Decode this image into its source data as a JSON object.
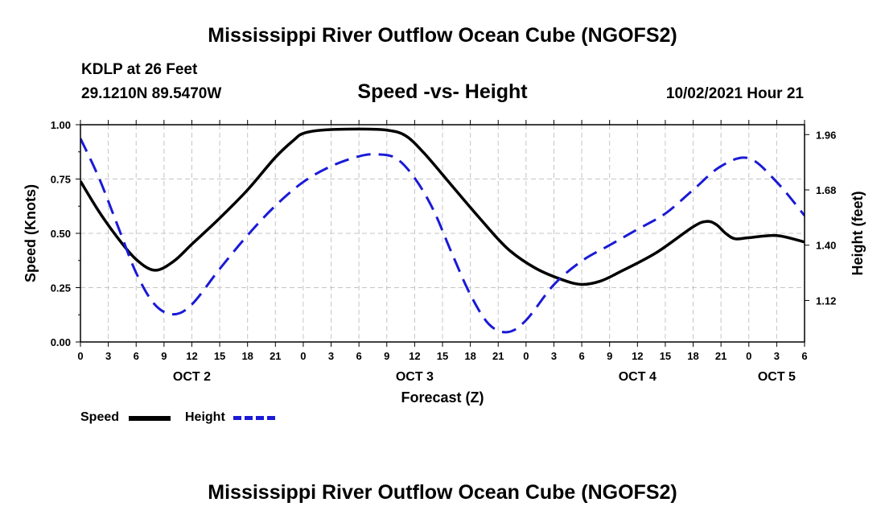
{
  "header": {
    "title": "Mississippi River Outflow Ocean Cube (NGOFS2)",
    "station": "KDLP at 26 Feet",
    "coords": "29.1210N  89.5470W",
    "subtitle": "Speed -vs- Height",
    "datetime": "10/02/2021 Hour 21"
  },
  "footer": {
    "title": "Mississippi River Outflow Ocean Cube (NGOFS2)"
  },
  "legend": {
    "speed_label": "Speed",
    "height_label": "Height"
  },
  "chart_data": {
    "type": "line",
    "xlabel": "Forecast (Z)",
    "ylabel_left": "Speed (Knots)",
    "ylabel_right": "Height (feet)",
    "x_hours_range": [
      0,
      78
    ],
    "x_tick_hours": [
      0,
      3,
      6,
      9,
      12,
      15,
      18,
      21,
      24,
      27,
      30,
      33,
      36,
      39,
      42,
      45,
      48,
      51,
      54,
      57,
      60,
      63,
      66,
      69,
      72,
      75,
      78
    ],
    "x_tick_labels": [
      "0",
      "3",
      "6",
      "9",
      "12",
      "15",
      "18",
      "21",
      "0",
      "3",
      "6",
      "9",
      "12",
      "15",
      "18",
      "21",
      "0",
      "3",
      "6",
      "9",
      "12",
      "15",
      "18",
      "21",
      "0",
      "3",
      "6"
    ],
    "date_labels": [
      {
        "label": "OCT 2",
        "hour": 12
      },
      {
        "label": "OCT 3",
        "hour": 36
      },
      {
        "label": "OCT 4",
        "hour": 60
      },
      {
        "label": "OCT 5",
        "hour": 75
      }
    ],
    "left_axis": {
      "ylim": [
        0,
        1
      ],
      "ticks": [
        0,
        0.25,
        0.5,
        0.75,
        1.0
      ],
      "tick_labels": [
        "0.00",
        "0.25",
        "0.50",
        "0.75",
        "1.00"
      ]
    },
    "right_axis": {
      "ylim": [
        0.91,
        2.01
      ],
      "ticks": [
        1.12,
        1.4,
        1.68,
        1.96
      ],
      "tick_labels": [
        "1.12",
        "1.40",
        "1.68",
        "1.96"
      ]
    },
    "grid": true,
    "series": [
      {
        "name": "Speed",
        "axis": "left",
        "color": "#000000",
        "style": "solid",
        "x": [
          0,
          2,
          4,
          6,
          8,
          10,
          12,
          15,
          18,
          21,
          23,
          24,
          26,
          30,
          33,
          35,
          37,
          40,
          43,
          46,
          49,
          52,
          54,
          56,
          58,
          62,
          66,
          67.5,
          68.5,
          69.5,
          70.5,
          72,
          75,
          78
        ],
        "values": [
          0.74,
          0.6,
          0.48,
          0.38,
          0.33,
          0.37,
          0.45,
          0.57,
          0.7,
          0.85,
          0.93,
          0.96,
          0.975,
          0.98,
          0.975,
          0.95,
          0.87,
          0.72,
          0.57,
          0.43,
          0.34,
          0.285,
          0.265,
          0.28,
          0.32,
          0.41,
          0.53,
          0.555,
          0.54,
          0.5,
          0.475,
          0.48,
          0.49,
          0.46
        ]
      },
      {
        "name": "Height",
        "axis": "right",
        "color": "#1a1ad6",
        "style": "dashed",
        "x": [
          0,
          2,
          4,
          6,
          8,
          10,
          12,
          15,
          18,
          21,
          24,
          27,
          30,
          32,
          34,
          36,
          38,
          40,
          42,
          44,
          46,
          48,
          51,
          54,
          57,
          60,
          63,
          66,
          69,
          72,
          75,
          78
        ],
        "values": [
          1.94,
          1.74,
          1.5,
          1.26,
          1.1,
          1.05,
          1.1,
          1.28,
          1.45,
          1.6,
          1.72,
          1.8,
          1.85,
          1.86,
          1.84,
          1.74,
          1.58,
          1.36,
          1.15,
          1.0,
          0.96,
          1.02,
          1.2,
          1.32,
          1.4,
          1.48,
          1.56,
          1.68,
          1.8,
          1.84,
          1.72,
          1.55
        ]
      }
    ]
  }
}
